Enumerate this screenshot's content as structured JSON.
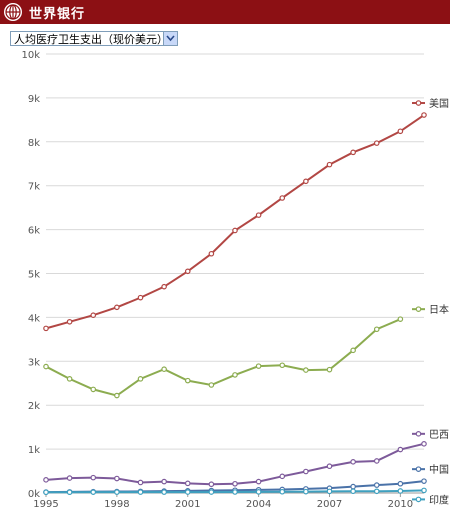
{
  "header": {
    "brand": "世界银行"
  },
  "selector": {
    "selected": "人均医疗卫生支出（现价美元）"
  },
  "colors": {
    "header_bg": "#8c1014"
  },
  "chart_data": {
    "type": "line",
    "title": "",
    "xlabel": "",
    "ylabel": "",
    "ylim": [
      0,
      10000
    ],
    "xlim": [
      1995,
      2011
    ],
    "yticks": [
      0,
      1000,
      2000,
      3000,
      4000,
      5000,
      6000,
      7000,
      8000,
      9000,
      10000
    ],
    "ytick_labels": [
      "0k",
      "1k",
      "2k",
      "3k",
      "4k",
      "5k",
      "6k",
      "7k",
      "8k",
      "9k",
      "10k"
    ],
    "xticks": [
      1995,
      1998,
      2001,
      2004,
      2007,
      2010
    ],
    "xtick_labels": [
      "1995",
      "1998",
      "2001",
      "2004",
      "2007",
      "2010"
    ],
    "grid": "horizontal",
    "x": [
      1995,
      1996,
      1997,
      1998,
      1999,
      2000,
      2001,
      2002,
      2003,
      2004,
      2005,
      2006,
      2007,
      2008,
      2009,
      2010,
      2011
    ],
    "series": [
      {
        "name": "美国",
        "color": "#b24744",
        "values": [
          3750,
          3900,
          4050,
          4230,
          4450,
          4700,
          5050,
          5450,
          5980,
          6330,
          6720,
          7100,
          7480,
          7760,
          7970,
          8240,
          8610
        ]
      },
      {
        "name": "日本",
        "color": "#8cac50",
        "values": [
          2880,
          2600,
          2360,
          2220,
          2600,
          2820,
          2560,
          2460,
          2690,
          2890,
          2910,
          2800,
          2810,
          3250,
          3730,
          3960,
          null
        ]
      },
      {
        "name": "巴西",
        "color": "#7d5a9a",
        "values": [
          300,
          340,
          350,
          330,
          240,
          260,
          220,
          200,
          210,
          260,
          380,
          490,
          610,
          710,
          730,
          990,
          1120
        ]
      },
      {
        "name": "中国",
        "color": "#4a72a8",
        "values": [
          21,
          25,
          30,
          33,
          37,
          43,
          49,
          56,
          62,
          72,
          81,
          94,
          110,
          146,
          180,
          211,
          270
        ]
      },
      {
        "name": "印度",
        "color": "#3fa0bf",
        "values": [
          17,
          18,
          19,
          20,
          20,
          20,
          21,
          21,
          23,
          26,
          29,
          31,
          37,
          40,
          39,
          46,
          59
        ]
      }
    ]
  }
}
